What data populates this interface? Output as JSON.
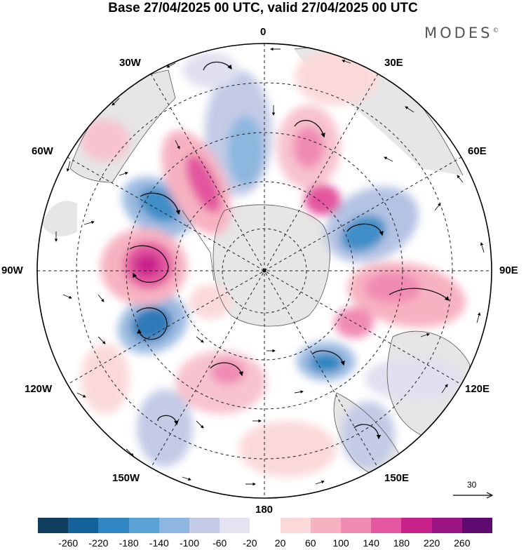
{
  "title": "Base 27/04/2025 00 UTC, valid 27/04/2025 00 UTC",
  "brand": "MODES",
  "brand_mark": "©",
  "longitude_labels": {
    "lon_0": "0",
    "lon_30e": "30E",
    "lon_60e": "60E",
    "lon_90e": "90E",
    "lon_120e": "120E",
    "lon_150e": "150E",
    "lon_180": "180",
    "lon_150w": "150W",
    "lon_120w": "120W",
    "lon_90w": "90W",
    "lon_60w": "60W",
    "lon_30w": "30W"
  },
  "reference_vector": "30",
  "colorbar": {
    "colors": [
      "#0e3d5e",
      "#13629a",
      "#2f86c2",
      "#5aa2d3",
      "#8db7df",
      "#c3cbe6",
      "#e4e4f1",
      "#ffffff",
      "#fbd9d9",
      "#f7b2c1",
      "#f08bb4",
      "#e3579f",
      "#c9218a",
      "#9a1482",
      "#5f0a6e"
    ],
    "tick_labels": [
      "-260",
      "-220",
      "-180",
      "-140",
      "-100",
      "-60",
      "-20",
      "20",
      "60",
      "100",
      "140",
      "180",
      "220",
      "260"
    ]
  },
  "chart_data": {
    "type": "heatmap",
    "projection": "south polar stereographic",
    "levels": [
      -260,
      -220,
      -180,
      -140,
      -100,
      -60,
      -20,
      20,
      60,
      100,
      140,
      180,
      220,
      260
    ],
    "anomalies": [
      {
        "sign": "negative",
        "near": "95W / 105W",
        "value": -180
      },
      {
        "sign": "positive",
        "near": "90W",
        "value": 220
      },
      {
        "sign": "negative",
        "near": "60W",
        "value": -160
      },
      {
        "sign": "positive",
        "near": "45W",
        "value": 140
      },
      {
        "sign": "negative",
        "near": "0",
        "value": -120
      },
      {
        "sign": "positive",
        "near": "20E",
        "value": 140
      },
      {
        "sign": "positive",
        "near": "35E",
        "value": 160
      },
      {
        "sign": "negative",
        "near": "70E",
        "value": -160
      },
      {
        "sign": "positive",
        "near": "90E",
        "value": 120
      },
      {
        "sign": "positive",
        "near": "100E",
        "value": 120
      },
      {
        "sign": "negative",
        "near": "120E",
        "value": -160
      },
      {
        "sign": "negative",
        "near": "140E",
        "value": -80
      },
      {
        "sign": "positive",
        "near": "165W",
        "value": 120
      },
      {
        "sign": "negative",
        "near": "140W",
        "value": -80
      },
      {
        "sign": "positive",
        "near": "130W",
        "value": 40
      }
    ],
    "grid": true
  }
}
